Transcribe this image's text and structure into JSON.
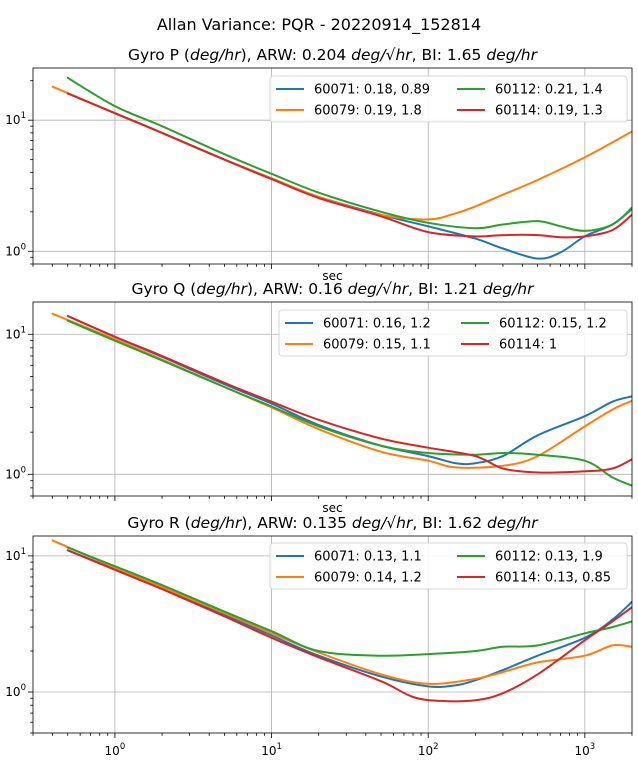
{
  "suptitle": "Allan Variance: PQR - 20220914_152814",
  "colors": {
    "60071": "#1f77b4",
    "60079": "#ff7f0e",
    "60112": "#2ca02c",
    "60114": "#d62728"
  },
  "chart_data": [
    {
      "type": "line",
      "title_pre": "Gyro P (",
      "title_unit": "deg/hr",
      "title_mid": "), ARW: 0.204 ",
      "title_arw_unit": "deg/√hr",
      "title_sep": ",  BI: 1.65 ",
      "title_bi_unit": "deg/hr",
      "xlabel": "sec",
      "xscale": "log",
      "yscale": "log",
      "xlim": [
        0.3,
        2000
      ],
      "ylim": [
        0.8,
        25
      ],
      "yticks": [
        1,
        10
      ],
      "grid": true,
      "legend_placement": "top-right",
      "series": [
        {
          "id": "60071",
          "name": "60071: 0.18, 0.89",
          "x": [
            0.5,
            1,
            2,
            5,
            10,
            20,
            50,
            100,
            200,
            300,
            500,
            700,
            1000,
            1500,
            2000
          ],
          "y": [
            16,
            11.3,
            8,
            5.0,
            3.6,
            2.6,
            1.9,
            1.55,
            1.25,
            1.05,
            0.88,
            0.98,
            1.3,
            1.6,
            2.1
          ]
        },
        {
          "id": "60079",
          "name": "60079: 0.19, 1.8",
          "x": [
            0.4,
            1,
            2,
            5,
            10,
            20,
            50,
            100,
            150,
            200,
            300,
            500,
            1000,
            2000
          ],
          "y": [
            18,
            11.3,
            8,
            5.0,
            3.6,
            2.6,
            1.9,
            1.75,
            1.95,
            2.2,
            2.7,
            3.5,
            5.2,
            8.2
          ]
        },
        {
          "id": "60112",
          "name": "60112: 0.21, 1.4",
          "x": [
            0.5,
            1,
            2,
            5,
            10,
            20,
            50,
            100,
            200,
            300,
            500,
            700,
            1000,
            1500,
            2000
          ],
          "y": [
            21,
            12.8,
            9,
            5.5,
            3.9,
            2.8,
            2.0,
            1.65,
            1.5,
            1.6,
            1.7,
            1.55,
            1.43,
            1.6,
            2.15
          ]
        },
        {
          "id": "60114",
          "name": "60114: 0.19, 1.3",
          "x": [
            0.5,
            1,
            2,
            5,
            10,
            20,
            50,
            100,
            200,
            300,
            500,
            700,
            1000,
            1500,
            2000
          ],
          "y": [
            16,
            11.3,
            8,
            5.0,
            3.55,
            2.55,
            1.85,
            1.4,
            1.3,
            1.33,
            1.33,
            1.28,
            1.3,
            1.45,
            1.9
          ]
        }
      ]
    },
    {
      "type": "line",
      "title_pre": "Gyro Q (",
      "title_unit": "deg/hr",
      "title_mid": "), ARW: 0.16 ",
      "title_arw_unit": "deg/√hr",
      "title_sep": ",  BI: 1.21 ",
      "title_bi_unit": "deg/hr",
      "xlabel": "sec",
      "xscale": "log",
      "yscale": "log",
      "xlim": [
        0.3,
        2000
      ],
      "ylim": [
        0.7,
        17
      ],
      "yticks": [
        1,
        10
      ],
      "grid": true,
      "legend_placement": "top-right",
      "series": [
        {
          "id": "60071",
          "name": "60071: 0.16, 1.2",
          "x": [
            0.5,
            1,
            2,
            5,
            10,
            20,
            50,
            100,
            150,
            200,
            300,
            500,
            1000,
            1500,
            2000
          ],
          "y": [
            13.5,
            9.6,
            6.9,
            4.4,
            3.2,
            2.25,
            1.6,
            1.35,
            1.2,
            1.2,
            1.35,
            1.9,
            2.6,
            3.3,
            3.6
          ]
        },
        {
          "id": "60079",
          "name": "60079: 0.15, 1.1",
          "x": [
            0.4,
            1,
            2,
            5,
            10,
            20,
            50,
            100,
            150,
            300,
            500,
            1000,
            1500,
            2000
          ],
          "y": [
            14,
            9.2,
            6.6,
            4.2,
            3.0,
            2.1,
            1.45,
            1.25,
            1.12,
            1.15,
            1.35,
            2.2,
            2.9,
            3.35
          ]
        },
        {
          "id": "60112",
          "name": "60112: 0.15, 1.2",
          "x": [
            0.5,
            1,
            2,
            5,
            10,
            20,
            50,
            100,
            200,
            300,
            500,
            1000,
            1500,
            2000
          ],
          "y": [
            12.5,
            9.0,
            6.5,
            4.2,
            3.05,
            2.2,
            1.6,
            1.42,
            1.38,
            1.42,
            1.38,
            1.25,
            0.95,
            0.83
          ]
        },
        {
          "id": "60114",
          "name": "60114: 1",
          "x": [
            0.5,
            1,
            2,
            5,
            10,
            20,
            50,
            100,
            200,
            300,
            500,
            1000,
            1500,
            2000
          ],
          "y": [
            13.5,
            9.6,
            7.0,
            4.5,
            3.3,
            2.45,
            1.8,
            1.55,
            1.35,
            1.1,
            1.03,
            1.05,
            1.1,
            1.28
          ]
        }
      ]
    },
    {
      "type": "line",
      "title_pre": "Gyro R (",
      "title_unit": "deg/hr",
      "title_mid": "), ARW: 0.135 ",
      "title_arw_unit": "deg/√hr",
      "title_sep": ",  BI: 1.62 ",
      "title_bi_unit": "deg/hr",
      "xlabel": "",
      "xscale": "log",
      "yscale": "log",
      "xlim": [
        0.3,
        2000
      ],
      "ylim": [
        0.5,
        14
      ],
      "yticks": [
        1,
        10
      ],
      "xticks": [
        1,
        10,
        100,
        1000
      ],
      "grid": true,
      "legend_placement": "top-right",
      "series": [
        {
          "id": "60071",
          "name": "60071: 0.13, 1.1",
          "x": [
            0.5,
            1,
            2,
            5,
            10,
            20,
            50,
            100,
            150,
            200,
            300,
            500,
            1000,
            1500,
            2000
          ],
          "y": [
            11,
            8.0,
            5.8,
            3.7,
            2.6,
            1.85,
            1.3,
            1.1,
            1.12,
            1.22,
            1.45,
            1.85,
            2.5,
            3.4,
            4.6
          ]
        },
        {
          "id": "60079",
          "name": "60079: 0.14, 1.2",
          "x": [
            0.4,
            1,
            2,
            5,
            10,
            20,
            50,
            100,
            200,
            300,
            500,
            1000,
            1500,
            2000
          ],
          "y": [
            13,
            8.2,
            5.9,
            3.8,
            2.7,
            1.95,
            1.35,
            1.15,
            1.25,
            1.4,
            1.65,
            1.85,
            2.2,
            2.15
          ]
        },
        {
          "id": "60112",
          "name": "60112: 0.13, 1.9",
          "x": [
            0.5,
            1,
            2,
            5,
            10,
            20,
            50,
            100,
            200,
            300,
            500,
            1000,
            1500,
            2000
          ],
          "y": [
            11.5,
            8.4,
            6.1,
            3.9,
            2.8,
            2.0,
            1.85,
            1.9,
            2.0,
            2.15,
            2.2,
            2.7,
            3.0,
            3.3
          ]
        },
        {
          "id": "60114",
          "name": "60114: 0.13, 0.85",
          "x": [
            0.5,
            1,
            2,
            5,
            10,
            20,
            50,
            80,
            120,
            200,
            300,
            500,
            1000,
            1500,
            2000
          ],
          "y": [
            11,
            7.9,
            5.7,
            3.6,
            2.5,
            1.8,
            1.2,
            0.92,
            0.86,
            0.87,
            0.98,
            1.35,
            2.4,
            3.3,
            4.2
          ]
        }
      ]
    }
  ]
}
